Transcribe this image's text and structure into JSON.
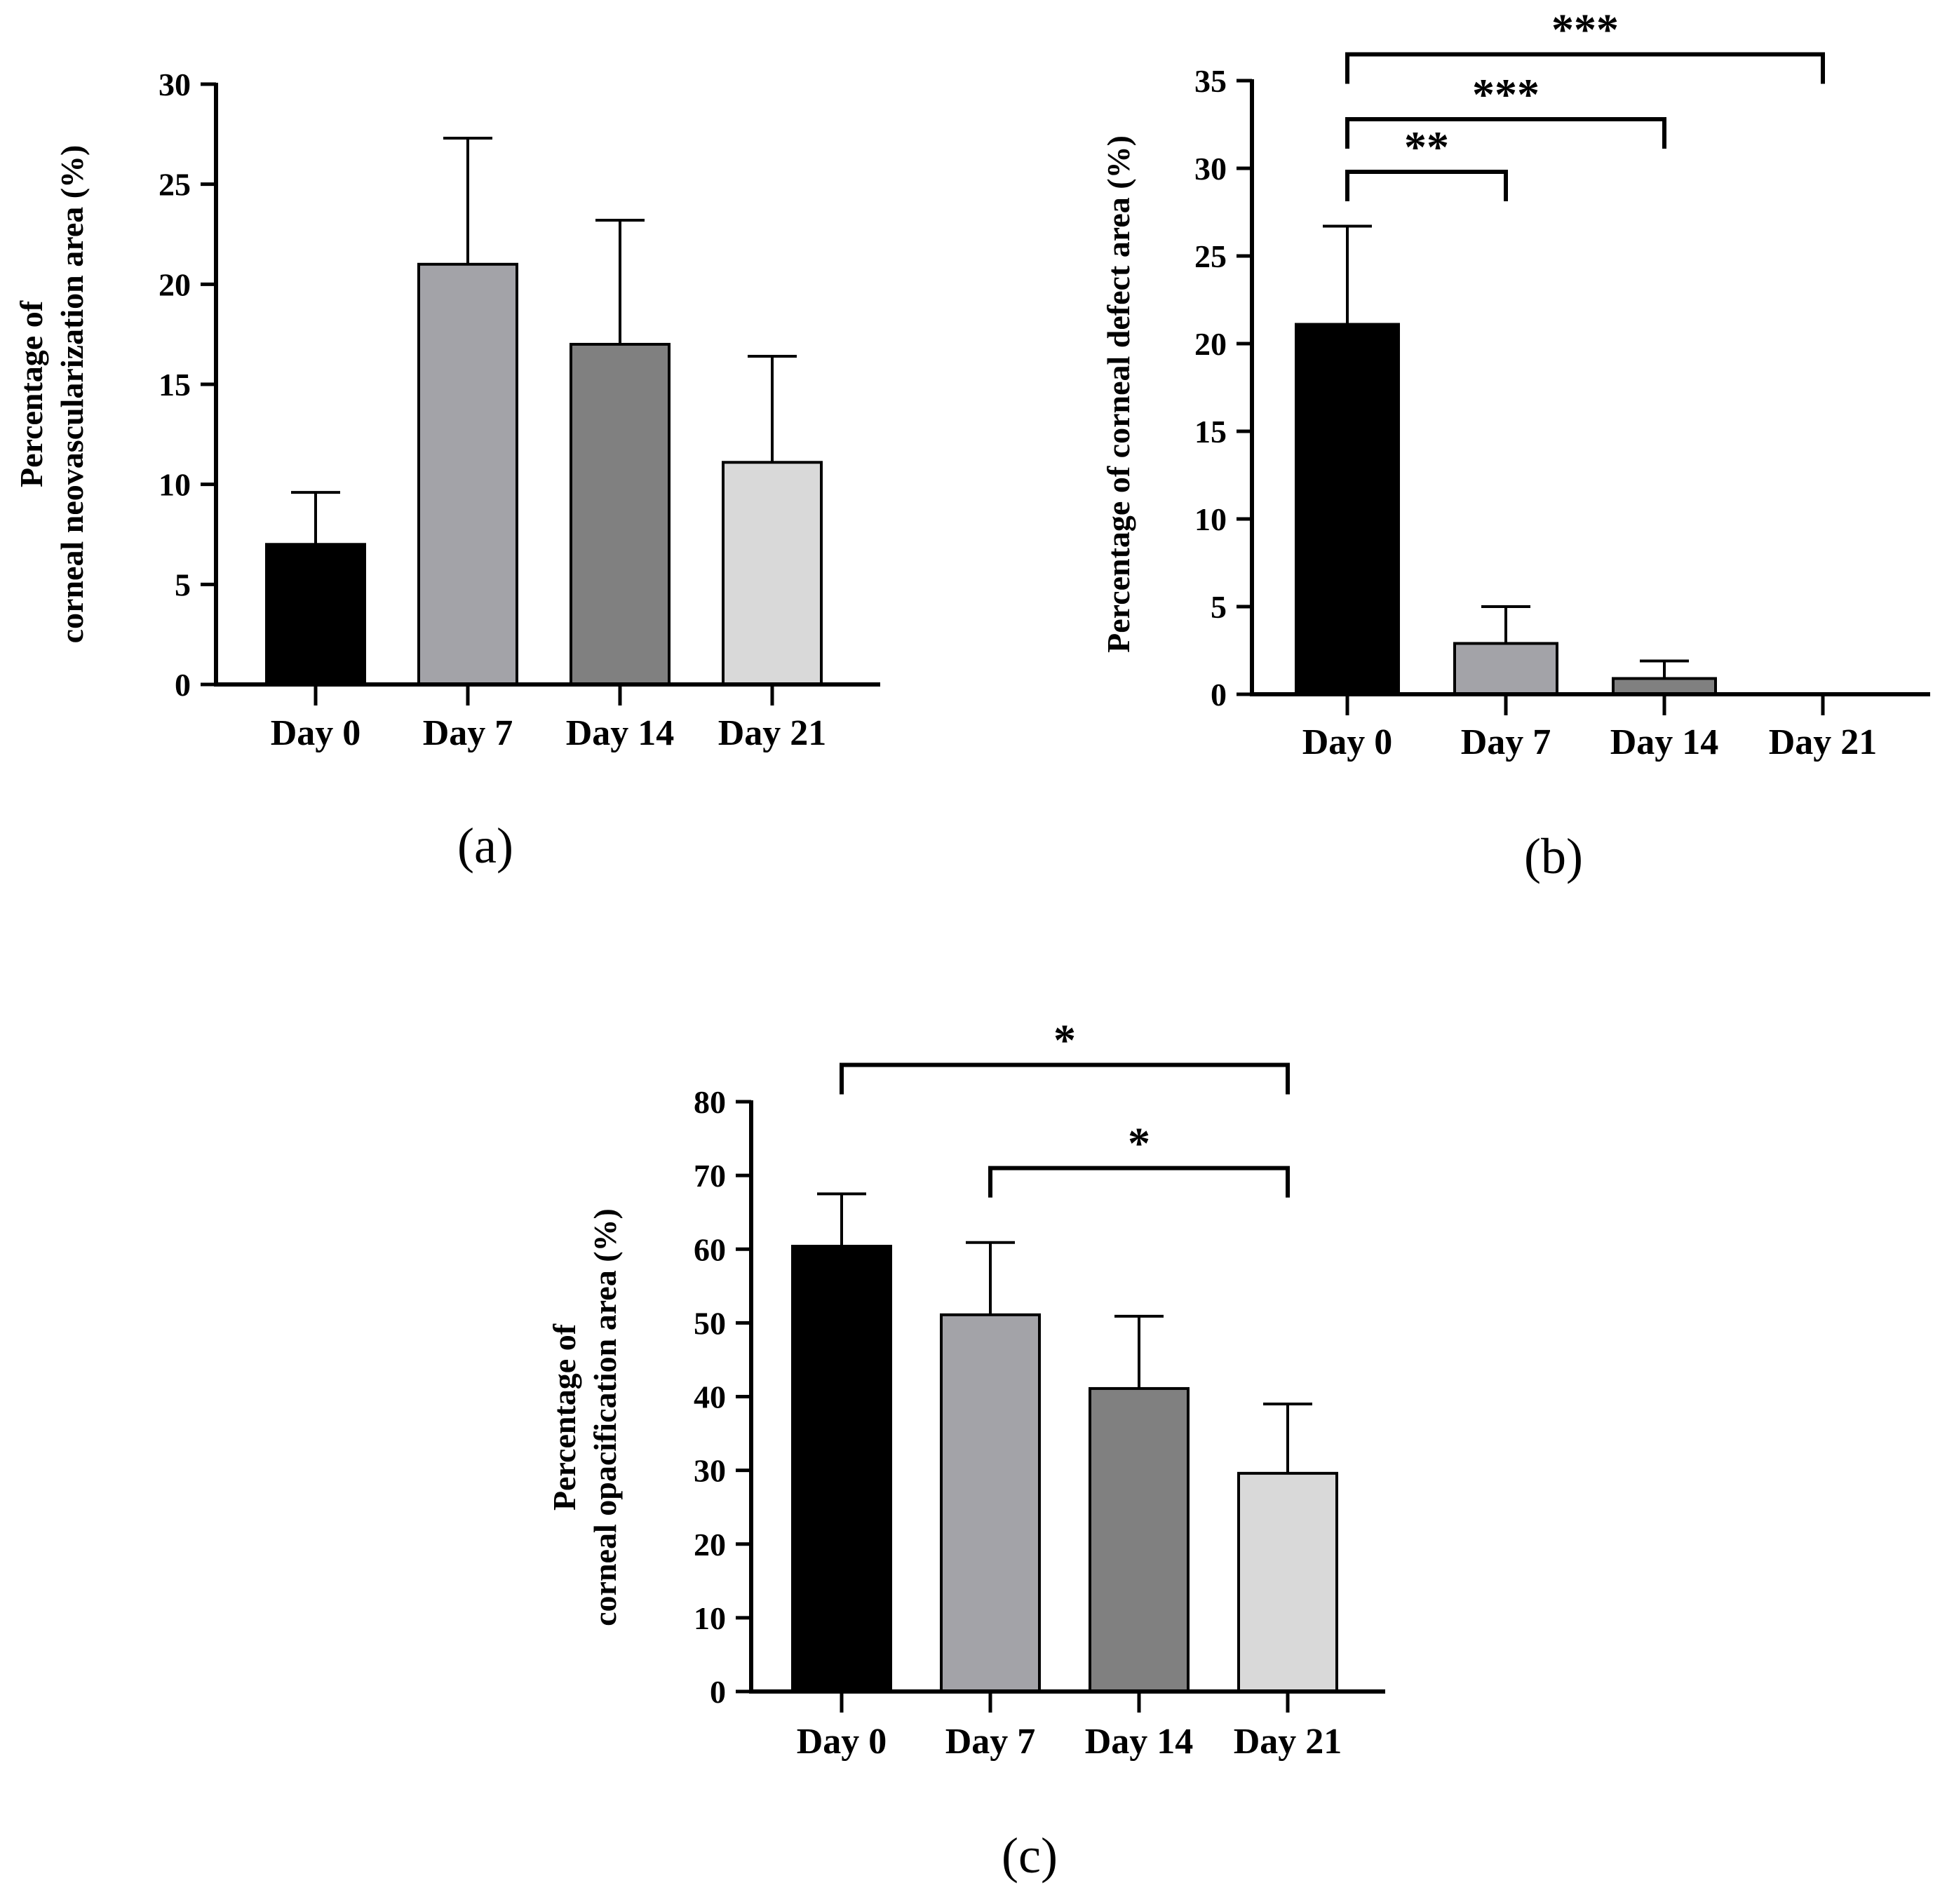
{
  "chart_data": [
    {
      "type": "bar",
      "panel_label": "(a)",
      "categories": [
        "Day 0",
        "Day 7",
        "Day 14",
        "Day 21"
      ],
      "values": [
        7.0,
        21.0,
        17.0,
        11.1
      ],
      "errors": [
        2.6,
        6.3,
        6.2,
        5.3
      ],
      "colors": [
        "#000000",
        "#a3a3a8",
        "#808080",
        "#d9d9d9"
      ],
      "ylabel": [
        "Percentage of",
        "corneal neovascularization area (%)"
      ],
      "ylim": [
        0,
        30
      ],
      "yticks": [
        0,
        5,
        10,
        15,
        20,
        25,
        30
      ],
      "significance": []
    },
    {
      "type": "bar",
      "panel_label": "(b)",
      "categories": [
        "Day 0",
        "Day 7",
        "Day 14",
        "Day 21"
      ],
      "values": [
        21.1,
        2.9,
        0.9,
        0.0
      ],
      "errors": [
        5.6,
        2.1,
        1.0,
        0.0
      ],
      "colors": [
        "#000000",
        "#a3a3a8",
        "#808080",
        "#d9d9d9"
      ],
      "ylabel": [
        "Percentage of corneal defect area (%)"
      ],
      "ylim": [
        0,
        35
      ],
      "yticks": [
        0,
        5,
        10,
        15,
        20,
        25,
        30,
        35
      ],
      "significance": [
        {
          "from": "Day 0",
          "to": "Day 7",
          "label": "**",
          "level": 29.8
        },
        {
          "from": "Day 0",
          "to": "Day 14",
          "label": "***",
          "level": 32.8
        },
        {
          "from": "Day 0",
          "to": "Day 21",
          "label": "***",
          "level": 36.5
        }
      ]
    },
    {
      "type": "bar",
      "panel_label": "(c)",
      "categories": [
        "Day 0",
        "Day 7",
        "Day 14",
        "Day 21"
      ],
      "values": [
        60.4,
        51.1,
        41.1,
        29.6
      ],
      "errors": [
        7.1,
        9.8,
        9.8,
        9.4
      ],
      "colors": [
        "#000000",
        "#a3a3a8",
        "#808080",
        "#d9d9d9"
      ],
      "ylabel": [
        "Percentage of",
        "corneal opacification area (%)"
      ],
      "ylim": [
        0,
        80
      ],
      "yticks": [
        0,
        10,
        20,
        30,
        40,
        50,
        60,
        70,
        80
      ],
      "significance": [
        {
          "from": "Day 0",
          "to": "Day 21",
          "label": "*",
          "level": 85.0
        },
        {
          "from": "Day 7",
          "to": "Day 21",
          "label": "*",
          "level": 71.0
        }
      ]
    }
  ]
}
